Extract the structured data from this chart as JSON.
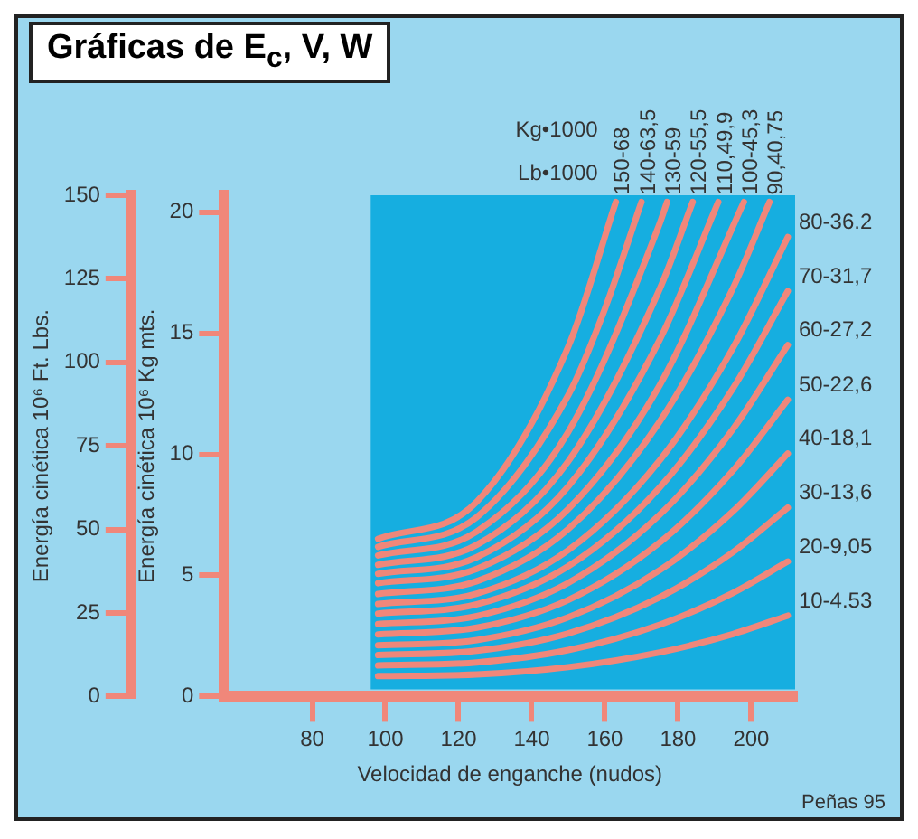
{
  "chart_data": {
    "type": "line",
    "title": "Gráficas de E$_{c}$, V, W",
    "xlabel": "Velocidad de enganche (nudos)",
    "ylabel": "Energía cinética 10⁶ Ft. Lbs.",
    "y2label": "Energía cinética 10⁶ Kg mts.",
    "xlim": [
      56,
      212
    ],
    "xticks": [
      80,
      100,
      120,
      140,
      160,
      180,
      200
    ],
    "ylim": [
      0,
      150
    ],
    "yticks": [
      0,
      25,
      50,
      75,
      100,
      125,
      150
    ],
    "y2lim": [
      0,
      20.7
    ],
    "y2ticks": [
      0,
      5,
      10,
      15,
      20
    ],
    "grid": false,
    "legend": false,
    "bands": [
      {
        "axis": "x",
        "from": 96,
        "to": 212,
        "color": "#16aee0"
      }
    ],
    "annotations": [
      "Kg•1000",
      "Lb•1000",
      "Peñas 95"
    ],
    "series": [
      {
        "name": "10-4.53",
        "color": "#f0877a",
        "x": [
          98,
          125,
          150,
          175,
          195,
          210
        ],
        "values": [
          6.1,
          6.6,
          8.8,
          13.2,
          18.7,
          24.2
        ]
      },
      {
        "name": "20-9,05",
        "color": "#f0877a",
        "x": [
          98,
          125,
          150,
          175,
          195,
          210
        ],
        "values": [
          9.3,
          10.2,
          13.9,
          21.5,
          31.0,
          40.4
        ]
      },
      {
        "name": "30-13,6",
        "color": "#f0877a",
        "x": [
          98,
          125,
          150,
          175,
          195,
          210
        ],
        "values": [
          12.4,
          13.7,
          18.9,
          29.7,
          43.2,
          56.5
        ]
      },
      {
        "name": "40-18,1",
        "color": "#f0877a",
        "x": [
          98,
          125,
          150,
          175,
          195,
          210
        ],
        "values": [
          15.3,
          16.9,
          23.7,
          37.8,
          55.4,
          72.7
        ]
      },
      {
        "name": "50-22,6",
        "color": "#f0877a",
        "x": [
          98,
          125,
          150,
          175,
          195,
          210
        ],
        "values": [
          18.6,
          20.6,
          28.9,
          46.1,
          67.6,
          88.8
        ]
      },
      {
        "name": "60-27,2",
        "color": "#f0877a",
        "x": [
          98,
          125,
          150,
          175,
          195,
          210
        ],
        "values": [
          21.7,
          24.1,
          34.0,
          54.4,
          80.0,
          105.2
        ]
      },
      {
        "name": "70-31,7",
        "color": "#f0877a",
        "x": [
          98,
          125,
          150,
          175,
          195,
          210
        ],
        "values": [
          24.8,
          27.6,
          39.0,
          62.6,
          92.2,
          121.3
        ]
      },
      {
        "name": "80-36.2",
        "color": "#f0877a",
        "x": [
          98,
          125,
          150,
          175,
          195,
          210
        ],
        "values": [
          27.7,
          30.8,
          43.8,
          70.7,
          104.3,
          137.5
        ]
      },
      {
        "name": "90,40,75",
        "color": "#f0877a",
        "x": [
          98,
          125,
          150,
          175,
          195,
          205
        ],
        "values": [
          30.7,
          34.5,
          50.1,
          82.3,
          122.2,
          148
        ]
      },
      {
        "name": "100-45,3",
        "color": "#f0877a",
        "x": [
          98,
          125,
          150,
          175,
          198
        ],
        "values": [
          33.9,
          38.2,
          56.1,
          93.2,
          148
        ]
      },
      {
        "name": "110,49,9",
        "color": "#f0877a",
        "x": [
          98,
          125,
          150,
          175,
          191
        ],
        "values": [
          36.7,
          41.7,
          62.9,
          106.8,
          148
        ]
      },
      {
        "name": "120-55,5",
        "color": "#f0877a",
        "x": [
          98,
          125,
          150,
          175,
          184
        ],
        "values": [
          39.4,
          45.4,
          70.4,
          122.0,
          148
        ]
      },
      {
        "name": "130-59",
        "color": "#f0877a",
        "x": [
          98,
          125,
          150,
          175,
          177
        ],
        "values": [
          42.2,
          49.4,
          79.2,
          141.6,
          148
        ]
      },
      {
        "name": "140-63,5",
        "color": "#f0877a",
        "x": [
          98,
          125,
          150,
          160,
          170
        ],
        "values": [
          44.8,
          53.7,
          90.2,
          116,
          148
        ]
      },
      {
        "name": "150-68",
        "color": "#f0877a",
        "x": [
          98,
          125,
          150,
          163
        ],
        "values": [
          47.2,
          58.3,
          104.7,
          148
        ]
      }
    ]
  }
}
